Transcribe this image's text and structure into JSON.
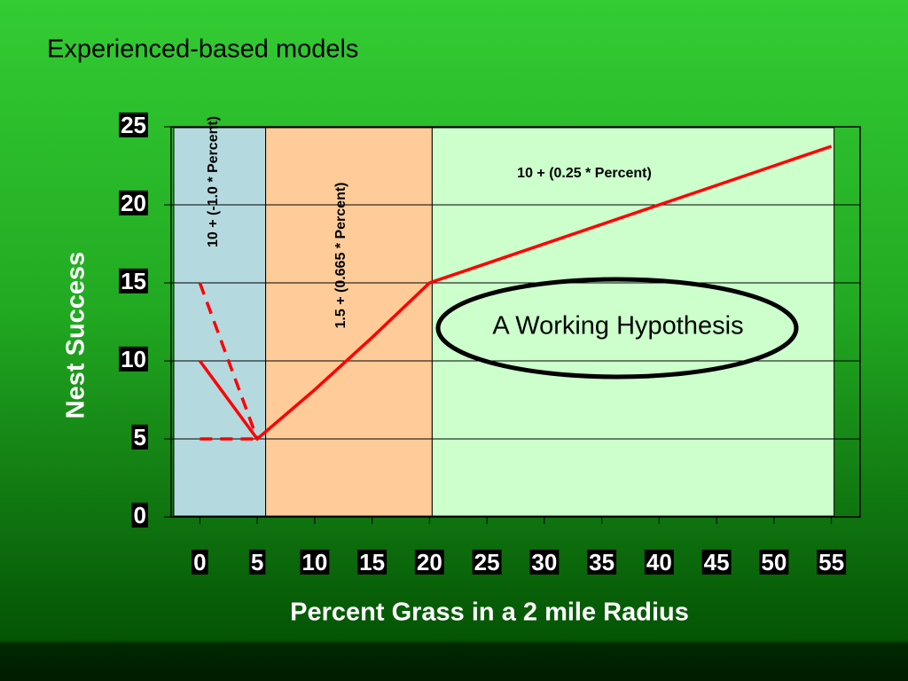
{
  "chart_data": {
    "type": "line",
    "title": "Experienced-based models",
    "xlabel": "Percent Grass in a 2 mile Radius",
    "ylabel": "Nest Success",
    "xlim": [
      -2.5,
      57.5
    ],
    "ylim": [
      0,
      25
    ],
    "xticks": [
      0,
      5,
      10,
      15,
      20,
      25,
      30,
      35,
      40,
      45,
      50,
      55
    ],
    "yticks": [
      0,
      5,
      10,
      15,
      20,
      25
    ],
    "grid": true,
    "regions": [
      {
        "x": [
          -2.5,
          5.5
        ],
        "color": "#b4dae0"
      },
      {
        "x": [
          5.5,
          20
        ],
        "color": "#ffcc99"
      },
      {
        "x": [
          20,
          55
        ],
        "color": "#ccffcc"
      }
    ],
    "series": [
      {
        "color": "#ff0000",
        "style": "solid",
        "x": [
          0,
          5,
          10,
          15,
          20,
          55
        ],
        "values": [
          10,
          5,
          8.15,
          11.5,
          15,
          23.75
        ]
      },
      {
        "color": "#ff0000",
        "style": "dashed",
        "x": [
          0,
          5
        ],
        "values": [
          15,
          5
        ]
      },
      {
        "color": "#ff0000",
        "style": "dashed",
        "x": [
          0,
          5
        ],
        "values": [
          5,
          5
        ]
      }
    ],
    "annotations": [
      "10 + (-1.0 * Percent)",
      "1.5 + (0.665 * Percent)",
      "10 + (0.25 * Percent)",
      "A Working Hypothesis"
    ]
  }
}
